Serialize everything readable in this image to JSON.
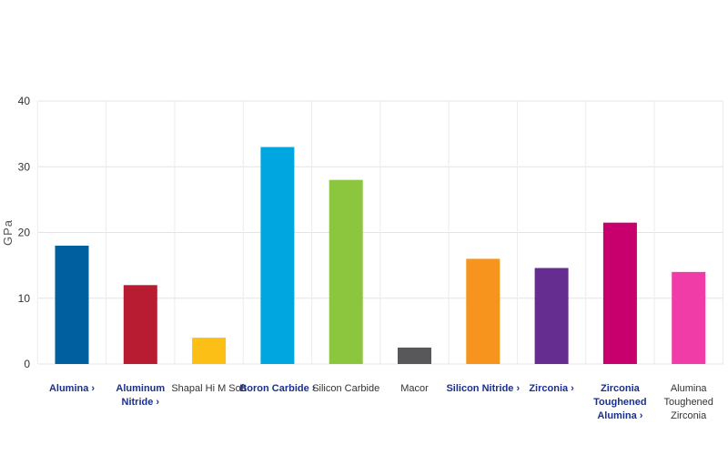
{
  "chart_data": {
    "type": "bar",
    "ylabel": "GPa",
    "ylim": [
      0,
      40
    ],
    "yticks": [
      0,
      10,
      20,
      30,
      40
    ],
    "grid": true,
    "categories": [
      {
        "lines": [
          "Alumina ›"
        ],
        "link": true
      },
      {
        "lines": [
          "Aluminum",
          "Nitride ›"
        ],
        "link": true
      },
      {
        "lines": [
          "Shapal Hi M Soft"
        ],
        "link": false
      },
      {
        "lines": [
          "Boron Carbide ›"
        ],
        "link": true
      },
      {
        "lines": [
          "Silicon Carbide"
        ],
        "link": false
      },
      {
        "lines": [
          "Macor"
        ],
        "link": false
      },
      {
        "lines": [
          "Silicon Nitride ›"
        ],
        "link": true
      },
      {
        "lines": [
          "Zirconia ›"
        ],
        "link": true
      },
      {
        "lines": [
          "Zirconia",
          "Toughened",
          "Alumina ›"
        ],
        "link": true
      },
      {
        "lines": [
          "Alumina",
          "Toughened",
          "Zirconia"
        ],
        "link": false
      }
    ],
    "values": [
      18,
      12,
      4,
      33,
      28,
      2.5,
      16,
      14.6,
      21.5,
      14
    ],
    "colors": [
      "#005f9e",
      "#b81c32",
      "#fbbf15",
      "#00a6df",
      "#8cc63f",
      "#58585a",
      "#f7941d",
      "#662d91",
      "#c8006e",
      "#ef3ca6"
    ]
  }
}
